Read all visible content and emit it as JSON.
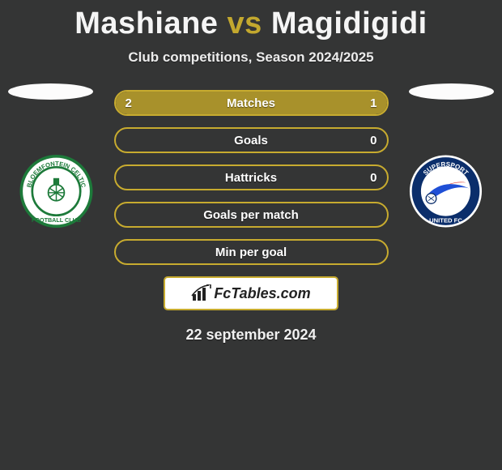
{
  "title": {
    "left": "Mashiane",
    "vs": "vs",
    "right": "Magidigidi"
  },
  "subtitle": "Club competitions, Season 2024/2025",
  "clubs": {
    "left": {
      "name": "Bloemfontein Celtic FC",
      "badge_bg": "#ffffff",
      "badge_ring": "#1d7a3a",
      "badge_accent": "#1d7a3a"
    },
    "right": {
      "name": "Supersport United FC",
      "badge_bg": "#ffffff",
      "badge_ring": "#0b2e6b",
      "badge_accent": "#e03a2f",
      "badge_accent2": "#1f4fd6"
    }
  },
  "stats": {
    "bar_border": "#c7ab2f",
    "bar_fill": "#a8912b",
    "rows": [
      {
        "label": "Matches",
        "left": "2",
        "right": "1",
        "left_pct": 66.7,
        "right_pct": 33.3
      },
      {
        "label": "Goals",
        "left": "",
        "right": "0",
        "left_pct": 0,
        "right_pct": 0
      },
      {
        "label": "Hattricks",
        "left": "",
        "right": "0",
        "left_pct": 0,
        "right_pct": 0
      },
      {
        "label": "Goals per match",
        "left": "",
        "right": "",
        "left_pct": 0,
        "right_pct": 0
      },
      {
        "label": "Min per goal",
        "left": "",
        "right": "",
        "left_pct": 0,
        "right_pct": 0
      }
    ]
  },
  "brand": "FcTables.com",
  "date": "22 september 2024",
  "colors": {
    "page_bg": "#343535",
    "gold": "#c3a82e",
    "text": "#f5f5f5"
  }
}
